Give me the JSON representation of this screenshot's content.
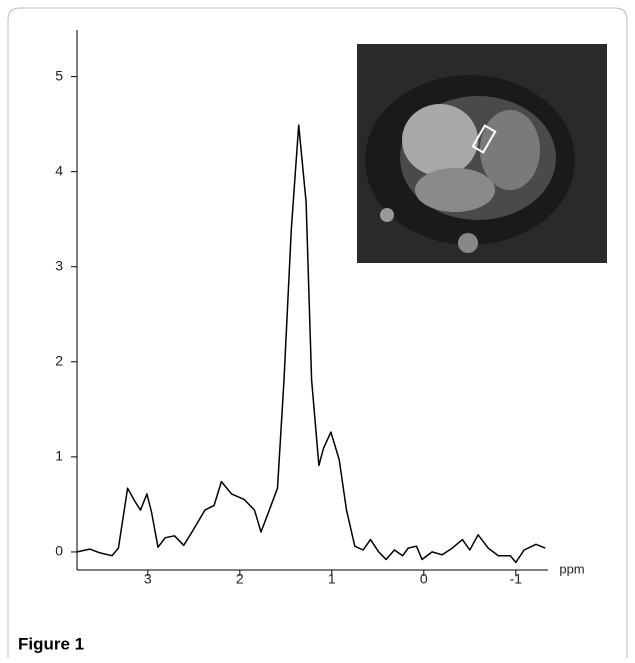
{
  "chart_data": {
    "type": "line",
    "title": "Figure 1",
    "xlabel": "ppm",
    "x": [
      3.77,
      3.63,
      3.52,
      3.39,
      3.32,
      3.22,
      3.14,
      3.08,
      3.01,
      2.96,
      2.89,
      2.81,
      2.71,
      2.61,
      2.52,
      2.38,
      2.28,
      2.2,
      2.09,
      1.95,
      1.84,
      1.77,
      1.68,
      1.59,
      1.52,
      1.44,
      1.36,
      1.28,
      1.22,
      1.14,
      1.09,
      1.01,
      0.92,
      0.84,
      0.75,
      0.66,
      0.58,
      0.49,
      0.41,
      0.32,
      0.23,
      0.17,
      0.08,
      0.02,
      -0.09,
      -0.2,
      -0.31,
      -0.42,
      -0.5,
      -0.59,
      -0.7,
      -0.81,
      -0.94,
      -1.0,
      -1.09,
      -1.22,
      -1.32
    ],
    "values": [
      0,
      0.03,
      -0.01,
      -0.04,
      0.04,
      0.67,
      0.53,
      0.44,
      0.61,
      0.42,
      0.05,
      0.15,
      0.17,
      0.07,
      0.21,
      0.44,
      0.49,
      0.74,
      0.61,
      0.55,
      0.44,
      0.21,
      0.44,
      0.67,
      1.81,
      3.39,
      4.49,
      3.68,
      1.81,
      0.91,
      1.09,
      1.26,
      0.97,
      0.44,
      0.06,
      0.02,
      0.13,
      0,
      -0.08,
      0.02,
      -0.04,
      0.04,
      0.06,
      -0.08,
      0,
      -0.03,
      0.04,
      0.13,
      0.02,
      0.18,
      0.04,
      -0.04,
      -0.04,
      -0.11,
      0.02,
      0.08,
      0.04
    ],
    "color": "#000000",
    "xlim": [
      3.77,
      -1.35
    ],
    "xticks": [
      3,
      2,
      1,
      0,
      -1
    ],
    "ylim": [
      -0.19,
      5.49
    ],
    "yticks": [
      0,
      1,
      2,
      3,
      4,
      5
    ]
  }
}
